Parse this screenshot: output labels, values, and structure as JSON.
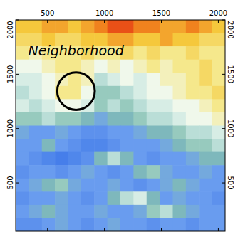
{
  "chart_data": {
    "type": "heatmap",
    "xlim": [
      220,
      2060
    ],
    "ylim": [
      55,
      2000
    ],
    "xticks": [
      500,
      1000,
      1500,
      2000
    ],
    "yticks": [
      500,
      1000,
      1500,
      2000
    ],
    "zlim": [
      0,
      1
    ],
    "cells": [
      [
        0.8,
        0.8,
        0.85,
        0.85,
        0.8,
        0.85,
        0.9,
        0.95,
        0.95,
        0.9,
        0.9,
        0.85,
        0.85,
        0.9,
        0.85,
        0.8
      ],
      [
        0.75,
        0.75,
        0.8,
        0.75,
        0.75,
        0.8,
        0.8,
        0.85,
        0.85,
        0.8,
        0.8,
        0.85,
        0.8,
        0.8,
        0.75,
        0.75
      ],
      [
        0.7,
        0.65,
        0.7,
        0.7,
        0.7,
        0.75,
        0.7,
        0.7,
        0.75,
        0.7,
        0.75,
        0.7,
        0.7,
        0.75,
        0.7,
        0.7
      ],
      [
        0.6,
        0.6,
        0.65,
        0.7,
        0.7,
        0.65,
        0.6,
        0.65,
        0.6,
        0.65,
        0.7,
        0.65,
        0.7,
        0.7,
        0.75,
        0.7
      ],
      [
        0.55,
        0.55,
        0.6,
        0.65,
        0.7,
        0.65,
        0.5,
        0.55,
        0.6,
        0.55,
        0.6,
        0.65,
        0.65,
        0.7,
        0.75,
        0.7
      ],
      [
        0.5,
        0.55,
        0.6,
        0.7,
        0.7,
        0.6,
        0.45,
        0.45,
        0.5,
        0.55,
        0.6,
        0.6,
        0.65,
        0.7,
        0.7,
        0.75
      ],
      [
        0.55,
        0.5,
        0.55,
        0.6,
        0.6,
        0.55,
        0.45,
        0.5,
        0.45,
        0.5,
        0.55,
        0.55,
        0.6,
        0.6,
        0.65,
        0.7
      ],
      [
        0.45,
        0.45,
        0.5,
        0.45,
        0.45,
        0.4,
        0.35,
        0.4,
        0.4,
        0.45,
        0.5,
        0.5,
        0.55,
        0.6,
        0.6,
        0.65
      ],
      [
        0.35,
        0.3,
        0.3,
        0.35,
        0.3,
        0.25,
        0.25,
        0.3,
        0.3,
        0.35,
        0.4,
        0.4,
        0.45,
        0.5,
        0.5,
        0.55
      ],
      [
        0.3,
        0.3,
        0.4,
        0.3,
        0.25,
        0.2,
        0.2,
        0.25,
        0.3,
        0.3,
        0.3,
        0.35,
        0.4,
        0.45,
        0.45,
        0.5
      ],
      [
        0.3,
        0.25,
        0.2,
        0.15,
        0.2,
        0.25,
        0.4,
        0.5,
        0.4,
        0.3,
        0.25,
        0.3,
        0.3,
        0.35,
        0.4,
        0.4
      ],
      [
        0.25,
        0.3,
        0.3,
        0.25,
        0.3,
        0.35,
        0.3,
        0.25,
        0.3,
        0.4,
        0.45,
        0.35,
        0.3,
        0.3,
        0.35,
        0.3
      ],
      [
        0.3,
        0.35,
        0.4,
        0.45,
        0.35,
        0.3,
        0.3,
        0.35,
        0.3,
        0.25,
        0.3,
        0.35,
        0.4,
        0.35,
        0.3,
        0.3
      ],
      [
        0.25,
        0.3,
        0.3,
        0.35,
        0.3,
        0.25,
        0.3,
        0.4,
        0.5,
        0.55,
        0.4,
        0.3,
        0.35,
        0.3,
        0.3,
        0.25
      ],
      [
        0.3,
        0.35,
        0.4,
        0.35,
        0.3,
        0.3,
        0.35,
        0.3,
        0.3,
        0.35,
        0.45,
        0.5,
        0.4,
        0.35,
        0.3,
        0.3
      ],
      [
        0.25,
        0.25,
        0.3,
        0.35,
        0.3,
        0.25,
        0.3,
        0.35,
        0.3,
        0.3,
        0.25,
        0.3,
        0.3,
        0.25,
        0.3,
        0.3
      ]
    ],
    "annotation": {
      "text": "Neighborhood",
      "x": 330,
      "y": 1673
    },
    "circle": {
      "x": 750,
      "y": 1345,
      "r": 165
    }
  }
}
